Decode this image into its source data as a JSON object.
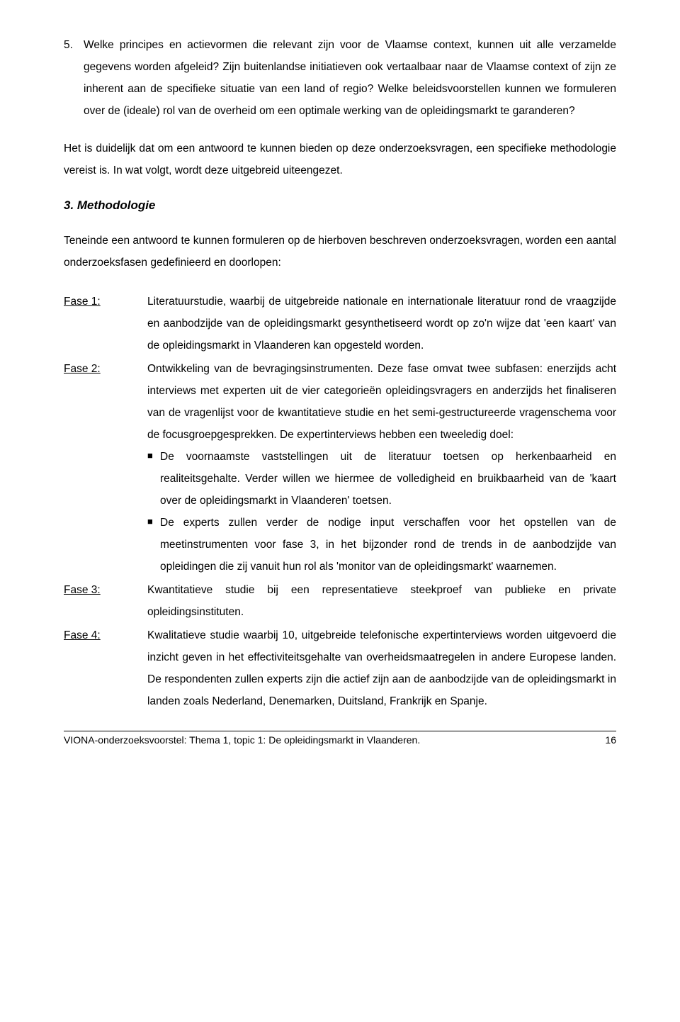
{
  "para5": {
    "number": "5.",
    "text": "Welke principes en actievormen die relevant zijn voor de Vlaamse context, kunnen uit alle verzamelde gegevens worden afgeleid? Zijn buitenlandse initiatieven ook vertaalbaar naar de Vlaamse context of zijn ze inherent aan de specifieke situatie van een land of regio? Welke beleidsvoorstellen kunnen we formuleren over de (ideale) rol van de overheid om een optimale werking van de opleidingsmarkt te garanderen?"
  },
  "transition": "Het is duidelijk dat om een antwoord te kunnen bieden op deze onderzoeksvragen, een specifieke methodologie vereist is. In wat volgt, wordt deze uitgebreid uiteengezet.",
  "heading": "3. Methodologie",
  "intro": "Teneinde een antwoord te kunnen formuleren op de hierboven beschreven onderzoeksvragen, worden een aantal onderzoeksfasen gedefinieerd en doorlopen:",
  "fases": {
    "f1": {
      "label": "Fase 1:",
      "text": "Literatuurstudie, waarbij de uitgebreide nationale en internationale literatuur rond de vraagzijde en aanbodzijde van de opleidingsmarkt gesynthetiseerd wordt op zo'n wijze dat 'een kaart' van de opleidingsmarkt in Vlaanderen kan opgesteld worden."
    },
    "f2": {
      "label": "Fase 2:",
      "lead": "Ontwikkeling van de  bevragingsinstrumenten. Deze fase omvat twee subfasen: enerzijds acht interviews met experten uit de vier categorieën opleidingsvragers en anderzijds het finaliseren van de vragenlijst voor de kwantitatieve studie en het semi-gestructureerde vragenschema voor de focusgroepgesprekken. De expertinterviews hebben een tweeledig doel:",
      "b1": "De voornaamste vaststellingen uit de literatuur toetsen op herkenbaarheid en realiteitsgehalte. Verder willen we hiermee de volledigheid en bruikbaarheid van de 'kaart over de opleidingsmarkt in Vlaanderen' toetsen.",
      "b2": "De experts zullen verder de nodige input verschaffen voor het opstellen van de meetinstrumenten voor fase 3, in het bijzonder rond de trends in de aanbodzijde van opleidingen die zij vanuit hun rol als 'monitor van de opleidingsmarkt' waarnemen."
    },
    "f3": {
      "label": "Fase 3:",
      "text": "Kwantitatieve studie bij een representatieve steekproef van publieke en private opleidingsinstituten."
    },
    "f4": {
      "label": "Fase 4:",
      "text": "Kwalitatieve studie waarbij 10, uitgebreide telefonische expertinterviews worden uitgevoerd die inzicht geven in het effectiviteitsgehalte van overheidsmaatregelen in andere Europese landen. De respondenten zullen experts zijn die actief zijn aan de aanbodzijde van de opleidingsmarkt in landen zoals Nederland, Denemarken, Duitsland, Frankrijk en Spanje."
    }
  },
  "footer": {
    "left": "VIONA-onderzoeksvoorstel: Thema 1, topic 1: De opleidingsmarkt in Vlaanderen.",
    "page": "16"
  }
}
